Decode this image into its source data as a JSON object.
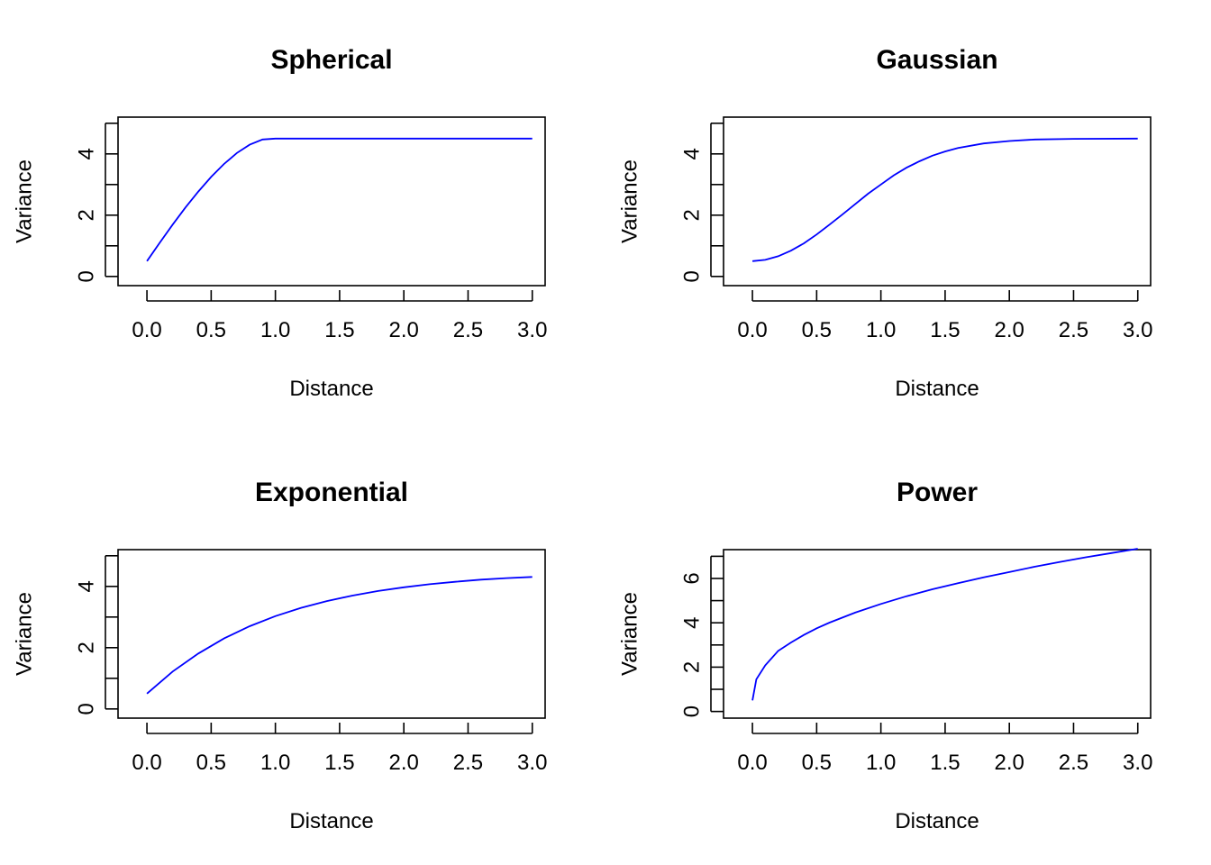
{
  "chart_data": [
    {
      "type": "line",
      "title": "Spherical",
      "xlabel": "Distance",
      "ylabel": "Variance",
      "xlim": [
        -0.225,
        3.1
      ],
      "ylim": [
        -0.3,
        5.2
      ],
      "xticks": [
        0.0,
        0.5,
        1.0,
        1.5,
        2.0,
        2.5,
        3.0
      ],
      "xtick_labels": [
        "0.0",
        "0.5",
        "1.0",
        "1.5",
        "2.0",
        "2.5",
        "3.0"
      ],
      "yticks": [
        0,
        1,
        2,
        3,
        4,
        5
      ],
      "ytick_labels": [
        "0",
        "",
        "2",
        "",
        "4",
        ""
      ],
      "grid": false,
      "color": "#0000ff",
      "series": [
        {
          "x": [
            0.0,
            0.1,
            0.2,
            0.3,
            0.4,
            0.5,
            0.6,
            0.7,
            0.8,
            0.9,
            1.0,
            1.5,
            2.0,
            2.5,
            3.0
          ],
          "y": [
            0.5,
            1.1,
            1.69,
            2.25,
            2.77,
            3.25,
            3.67,
            4.03,
            4.3,
            4.47,
            4.5,
            4.5,
            4.5,
            4.5,
            4.5
          ]
        }
      ]
    },
    {
      "type": "line",
      "title": "Gaussian",
      "xlabel": "Distance",
      "ylabel": "Variance",
      "xlim": [
        -0.225,
        3.1
      ],
      "ylim": [
        -0.3,
        5.2
      ],
      "xticks": [
        0.0,
        0.5,
        1.0,
        1.5,
        2.0,
        2.5,
        3.0
      ],
      "xtick_labels": [
        "0.0",
        "0.5",
        "1.0",
        "1.5",
        "2.0",
        "2.5",
        "3.0"
      ],
      "yticks": [
        0,
        1,
        2,
        3,
        4,
        5
      ],
      "ytick_labels": [
        "0",
        "",
        "2",
        "",
        "4",
        ""
      ],
      "grid": false,
      "color": "#0000ff",
      "series": [
        {
          "x": [
            0.0,
            0.1,
            0.2,
            0.3,
            0.4,
            0.5,
            0.6,
            0.7,
            0.8,
            0.9,
            1.0,
            1.1,
            1.2,
            1.3,
            1.4,
            1.5,
            1.6,
            1.8,
            2.0,
            2.2,
            2.5,
            3.0
          ],
          "y": [
            0.5,
            0.54,
            0.66,
            0.84,
            1.08,
            1.37,
            1.69,
            2.02,
            2.36,
            2.7,
            3.0,
            3.3,
            3.55,
            3.76,
            3.94,
            4.08,
            4.19,
            4.34,
            4.42,
            4.47,
            4.49,
            4.5
          ]
        }
      ]
    },
    {
      "type": "line",
      "title": "Exponential",
      "xlabel": "Distance",
      "ylabel": "Variance",
      "xlim": [
        -0.225,
        3.1
      ],
      "ylim": [
        -0.3,
        5.2
      ],
      "xticks": [
        0.0,
        0.5,
        1.0,
        1.5,
        2.0,
        2.5,
        3.0
      ],
      "xtick_labels": [
        "0.0",
        "0.5",
        "1.0",
        "1.5",
        "2.0",
        "2.5",
        "3.0"
      ],
      "yticks": [
        0,
        1,
        2,
        3,
        4,
        5
      ],
      "ytick_labels": [
        "0",
        "",
        "2",
        "",
        "4",
        ""
      ],
      "grid": false,
      "color": "#0000ff",
      "series": [
        {
          "x": [
            0.0,
            0.2,
            0.4,
            0.6,
            0.8,
            1.0,
            1.2,
            1.4,
            1.6,
            1.8,
            2.0,
            2.2,
            2.4,
            2.6,
            2.8,
            3.0
          ],
          "y": [
            0.5,
            1.22,
            1.81,
            2.3,
            2.7,
            3.03,
            3.3,
            3.52,
            3.7,
            3.85,
            3.97,
            4.07,
            4.15,
            4.22,
            4.27,
            4.31
          ]
        }
      ]
    },
    {
      "type": "line",
      "title": "Power",
      "xlabel": "Distance",
      "ylabel": "Variance",
      "xlim": [
        -0.225,
        3.1
      ],
      "ylim": [
        -0.3,
        7.3
      ],
      "xticks": [
        0.0,
        0.5,
        1.0,
        1.5,
        2.0,
        2.5,
        3.0
      ],
      "xtick_labels": [
        "0.0",
        "0.5",
        "1.0",
        "1.5",
        "2.0",
        "2.5",
        "3.0"
      ],
      "yticks": [
        0,
        1,
        2,
        3,
        4,
        5,
        6,
        7
      ],
      "ytick_labels": [
        "0",
        "",
        "2",
        "",
        "4",
        "",
        "6",
        ""
      ],
      "grid": false,
      "color": "#0000ff",
      "series": [
        {
          "x": [
            0.0,
            0.03,
            0.1,
            0.2,
            0.3,
            0.4,
            0.5,
            0.6,
            0.8,
            1.0,
            1.2,
            1.4,
            1.6,
            1.8,
            2.0,
            2.2,
            2.4,
            2.6,
            2.8,
            3.0
          ],
          "y": [
            0.5,
            1.45,
            2.08,
            2.73,
            3.11,
            3.45,
            3.75,
            4.01,
            4.46,
            4.85,
            5.2,
            5.51,
            5.79,
            6.05,
            6.29,
            6.53,
            6.75,
            6.96,
            7.15,
            7.34
          ]
        }
      ]
    }
  ]
}
